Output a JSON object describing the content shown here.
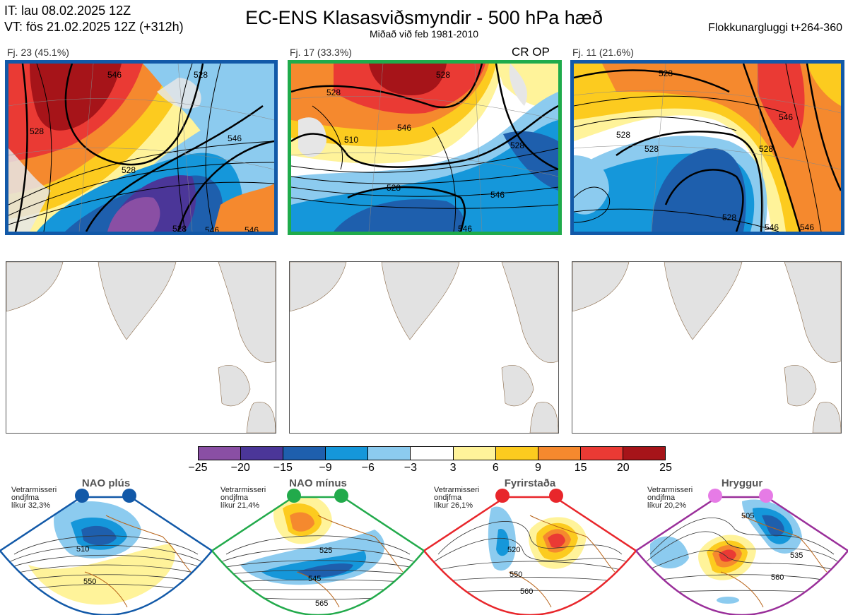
{
  "header": {
    "it_line": "IT: lau 08.02.2025 12Z",
    "vt_line": "VT: fös 21.02.2025 12Z  (+312h)",
    "title": "EC-ENS Klasasviðsmyndir - 500 hPa hæð",
    "subtitle": "Miðað við feb 1981-2010",
    "window": "Flokkunargluggi t+264-360"
  },
  "clusters": [
    {
      "label": "Fj. 23 (45.1%)",
      "members": 23,
      "percent": 45.1,
      "border_color": "#1259a8",
      "contour_labels": [
        "528",
        "546",
        "528",
        "528",
        "546",
        "546",
        "546",
        "528"
      ]
    },
    {
      "label": "Fj. 17 (33.3%)",
      "members": 17,
      "percent": 33.3,
      "border_color": "#1fab4b",
      "tag": "CR OP",
      "contour_labels": [
        "528",
        "510",
        "528",
        "546",
        "528",
        "528",
        "546",
        "546"
      ]
    },
    {
      "label": "Fj. 11 (21.6%)",
      "members": 11,
      "percent": 21.6,
      "border_color": "#1259a8",
      "contour_labels": [
        "528",
        "528",
        "528",
        "546",
        "528",
        "528",
        "546",
        "546"
      ]
    }
  ],
  "colorbar": {
    "colors": [
      "#8a4fa4",
      "#4b3698",
      "#1e5fad",
      "#1597da",
      "#8ccbef",
      "#ffffff",
      "#fff39a",
      "#fccb1f",
      "#f5892e",
      "#ea3a34",
      "#a61419"
    ],
    "ticks": [
      "−25",
      "−20",
      "−15",
      "−9",
      "−6",
      "−3",
      "3",
      "6",
      "9",
      "15",
      "20",
      "25"
    ]
  },
  "regimes": [
    {
      "name": "NAO plús",
      "note1": "Vetrarmisseri",
      "note2": "ondjfma",
      "note3": "líkur 32,3%",
      "color": "#1259a8",
      "labels": [
        "510",
        "550"
      ]
    },
    {
      "name": "NAO mínus",
      "note1": "Vetrarmisseri",
      "note2": "ondjfma",
      "note3": "líkur 21,4%",
      "color": "#22aa4b",
      "labels": [
        "525",
        "545",
        "565"
      ]
    },
    {
      "name": "Fyrirstaða",
      "note1": "Vetrarmisseri",
      "note2": "ondjfma",
      "note3": "líkur 26,1%",
      "color": "#e8262b",
      "labels": [
        "520",
        "550",
        "560"
      ]
    },
    {
      "name": "Hryggur",
      "note1": "Vetrarmisseri",
      "note2": "ondjfma",
      "note3": "líkur 20,2%",
      "color": "#e67be6",
      "labels": [
        "505",
        "535",
        "560"
      ]
    }
  ]
}
